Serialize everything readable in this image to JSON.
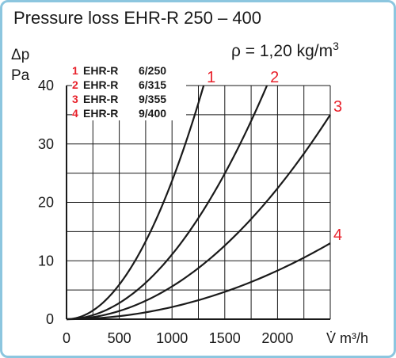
{
  "title": "Pressure loss EHR-R 250 – 400",
  "density_label": "ρ = 1,20 kg/m",
  "density_exp": "3",
  "colors": {
    "frame": "#8cc6df",
    "curve": "#1a1a1a",
    "accent": "#e8212b",
    "grid": "#1a1a1a"
  },
  "legend": [
    {
      "num": "1",
      "name": "EHR-R",
      "spec": "6/250"
    },
    {
      "num": "2",
      "name": "EHR-R",
      "spec": "6/315"
    },
    {
      "num": "3",
      "name": "EHR-R",
      "spec": "9/355"
    },
    {
      "num": "4",
      "name": "EHR-R",
      "spec": "9/400"
    }
  ],
  "chart_data": {
    "type": "line",
    "title": "Pressure loss EHR-R 250 – 400",
    "xlabel": "V̇ m³/h",
    "ylabel": "Δp Pa",
    "xlim": [
      0,
      2500
    ],
    "ylim": [
      0,
      40
    ],
    "x_ticks": [
      0,
      500,
      1000,
      1500,
      2000
    ],
    "x_tick_labels": [
      "0",
      "500",
      "1000",
      "1500",
      "2000"
    ],
    "y_ticks": [
      0,
      10,
      20,
      30,
      40
    ],
    "y_tick_labels": [
      "0",
      "10",
      "20",
      "30",
      "40"
    ],
    "grid": true,
    "series": [
      {
        "name": "1",
        "x_end": 1300,
        "y_end": 40
      },
      {
        "name": "2",
        "x_end": 1900,
        "y_end": 40
      },
      {
        "name": "3",
        "x_end": 2500,
        "y_end": 35
      },
      {
        "name": "4",
        "x_end": 2500,
        "y_end": 13
      }
    ]
  }
}
